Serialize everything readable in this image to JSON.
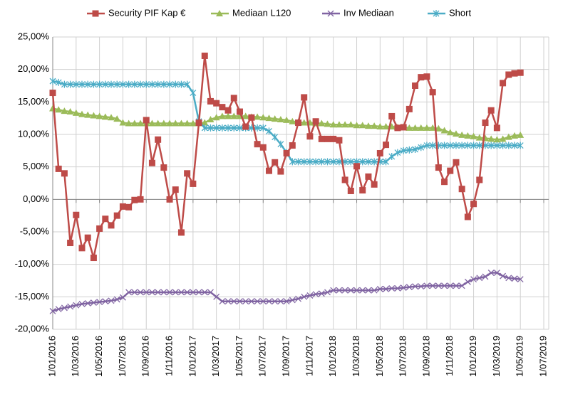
{
  "chart_data": {
    "type": "line",
    "categories": [
      "1/01/2016",
      null,
      null,
      null,
      "1/03/2016",
      null,
      null,
      null,
      "1/05/2016",
      null,
      null,
      null,
      "1/07/2016",
      null,
      null,
      null,
      "1/09/2016",
      null,
      null,
      null,
      "1/11/2016",
      null,
      null,
      null,
      "1/01/2017",
      null,
      null,
      null,
      "1/03/2017",
      null,
      null,
      null,
      "1/05/2017",
      null,
      null,
      null,
      "1/07/2017",
      null,
      null,
      null,
      "1/09/2017",
      null,
      null,
      null,
      "1/11/2017",
      null,
      null,
      null,
      "1/01/2018",
      null,
      null,
      null,
      "1/03/2018",
      null,
      null,
      null,
      "1/05/2018",
      null,
      null,
      null,
      "1/07/2018",
      null,
      null,
      null,
      "1/09/2018",
      null,
      null,
      null,
      "1/11/2018",
      null,
      null,
      null,
      "1/01/2019",
      null,
      null,
      null,
      "1/03/2019",
      null,
      null,
      null,
      "1/05/2019",
      null,
      null,
      null,
      "1/07/2019"
    ],
    "series": [
      {
        "name": "Security PIF Kap €",
        "color": "#be4b48",
        "marker": "square",
        "values": [
          16.4,
          4.7,
          4.0,
          -6.7,
          -2.4,
          -7.5,
          -5.9,
          -9.0,
          -4.5,
          -3.0,
          -4.0,
          -2.5,
          -1.1,
          -1.2,
          -0.1,
          0.0,
          12.2,
          5.6,
          9.2,
          4.9,
          0.0,
          1.5,
          -5.1,
          4.0,
          2.4,
          11.8,
          22.1,
          15.1,
          14.8,
          14.2,
          13.7,
          15.6,
          13.5,
          11.2,
          12.6,
          8.5,
          8.0,
          4.4,
          5.7,
          4.3,
          7.1,
          8.3,
          11.8,
          15.7,
          9.7,
          12.0,
          9.3,
          9.3,
          9.3,
          9.1,
          3.0,
          1.3,
          5.1,
          1.4,
          3.5,
          2.3,
          7.1,
          8.4,
          12.8,
          11.0,
          11.1,
          13.9,
          17.5,
          18.8,
          18.9,
          16.5,
          4.9,
          2.7,
          4.4,
          5.7,
          1.6,
          -2.7,
          -0.7,
          3.0,
          11.8,
          13.7,
          11.0,
          17.9,
          19.2,
          19.4,
          19.5,
          null,
          null,
          null,
          null
        ]
      },
      {
        "name": "Mediaan L120",
        "color": "#9bbb59",
        "marker": "triangle",
        "values": [
          14.0,
          13.8,
          13.6,
          13.5,
          13.3,
          13.1,
          13.0,
          12.9,
          12.8,
          12.7,
          12.6,
          12.4,
          11.8,
          11.7,
          11.7,
          11.7,
          11.7,
          11.7,
          11.7,
          11.7,
          11.7,
          11.7,
          11.7,
          11.7,
          11.7,
          11.7,
          11.8,
          12.3,
          12.6,
          12.8,
          12.8,
          12.8,
          12.8,
          12.8,
          12.7,
          12.7,
          12.6,
          12.5,
          12.4,
          12.3,
          12.2,
          12.0,
          11.9,
          11.8,
          11.8,
          11.7,
          11.7,
          11.6,
          11.5,
          11.5,
          11.5,
          11.5,
          11.4,
          11.4,
          11.3,
          11.3,
          11.2,
          11.2,
          11.2,
          11.1,
          11.1,
          11.0,
          11.0,
          11.0,
          11.0,
          11.0,
          10.9,
          10.6,
          10.3,
          10.1,
          9.9,
          9.8,
          9.7,
          9.5,
          9.4,
          9.3,
          9.2,
          9.3,
          9.6,
          9.8,
          9.9,
          null,
          null,
          null,
          null
        ]
      },
      {
        "name": "Inv Mediaan",
        "color": "#8064a2",
        "marker": "x",
        "values": [
          -17.2,
          -16.9,
          -16.7,
          -16.5,
          -16.3,
          -16.1,
          -16.0,
          -15.9,
          -15.8,
          -15.7,
          -15.6,
          -15.4,
          -15.1,
          -14.3,
          -14.3,
          -14.3,
          -14.3,
          -14.3,
          -14.3,
          -14.3,
          -14.3,
          -14.3,
          -14.3,
          -14.3,
          -14.3,
          -14.3,
          -14.3,
          -14.3,
          -15.0,
          -15.7,
          -15.7,
          -15.7,
          -15.7,
          -15.7,
          -15.7,
          -15.7,
          -15.7,
          -15.7,
          -15.7,
          -15.7,
          -15.7,
          -15.5,
          -15.3,
          -15.0,
          -14.8,
          -14.6,
          -14.5,
          -14.3,
          -14.0,
          -14.0,
          -14.0,
          -14.0,
          -14.0,
          -14.0,
          -14.0,
          -14.0,
          -13.8,
          -13.8,
          -13.7,
          -13.7,
          -13.6,
          -13.5,
          -13.4,
          -13.4,
          -13.3,
          -13.3,
          -13.3,
          -13.3,
          -13.3,
          -13.3,
          -13.3,
          -12.7,
          -12.3,
          -12.1,
          -11.9,
          -11.3,
          -11.3,
          -11.8,
          -12.1,
          -12.2,
          -12.3,
          null,
          null,
          null,
          null
        ]
      },
      {
        "name": "Short",
        "color": "#4bacc6",
        "marker": "star",
        "values": [
          18.2,
          18.0,
          17.7,
          17.7,
          17.7,
          17.7,
          17.7,
          17.7,
          17.7,
          17.7,
          17.7,
          17.7,
          17.7,
          17.7,
          17.7,
          17.7,
          17.7,
          17.7,
          17.7,
          17.7,
          17.7,
          17.7,
          17.7,
          17.7,
          16.4,
          12.0,
          11.0,
          11.0,
          11.0,
          11.0,
          11.0,
          11.0,
          11.0,
          11.0,
          11.0,
          11.0,
          11.0,
          10.5,
          9.6,
          8.5,
          7.2,
          5.8,
          5.8,
          5.8,
          5.8,
          5.8,
          5.8,
          5.8,
          5.8,
          5.8,
          5.8,
          5.8,
          5.8,
          5.8,
          5.8,
          5.8,
          5.8,
          5.8,
          6.6,
          7.2,
          7.5,
          7.6,
          7.7,
          8.0,
          8.3,
          8.3,
          8.3,
          8.3,
          8.3,
          8.3,
          8.3,
          8.3,
          8.3,
          8.3,
          8.3,
          8.3,
          8.3,
          8.3,
          8.3,
          8.3,
          8.3,
          null,
          null,
          null,
          null
        ]
      }
    ],
    "ylim": [
      -20,
      25
    ],
    "yticks": [
      {
        "value": -20,
        "label": "-20,00%"
      },
      {
        "value": -15,
        "label": "-15,00%"
      },
      {
        "value": -10,
        "label": "-10,00%"
      },
      {
        "value": -5,
        "label": "-5,00%"
      },
      {
        "value": 0,
        "label": "0,00%"
      },
      {
        "value": 5,
        "label": "5,00%"
      },
      {
        "value": 10,
        "label": "10,00%"
      },
      {
        "value": 15,
        "label": "15,00%"
      },
      {
        "value": 20,
        "label": "20,00%"
      },
      {
        "value": 25,
        "label": "25,00%"
      }
    ],
    "grid": true,
    "legend": "top"
  }
}
